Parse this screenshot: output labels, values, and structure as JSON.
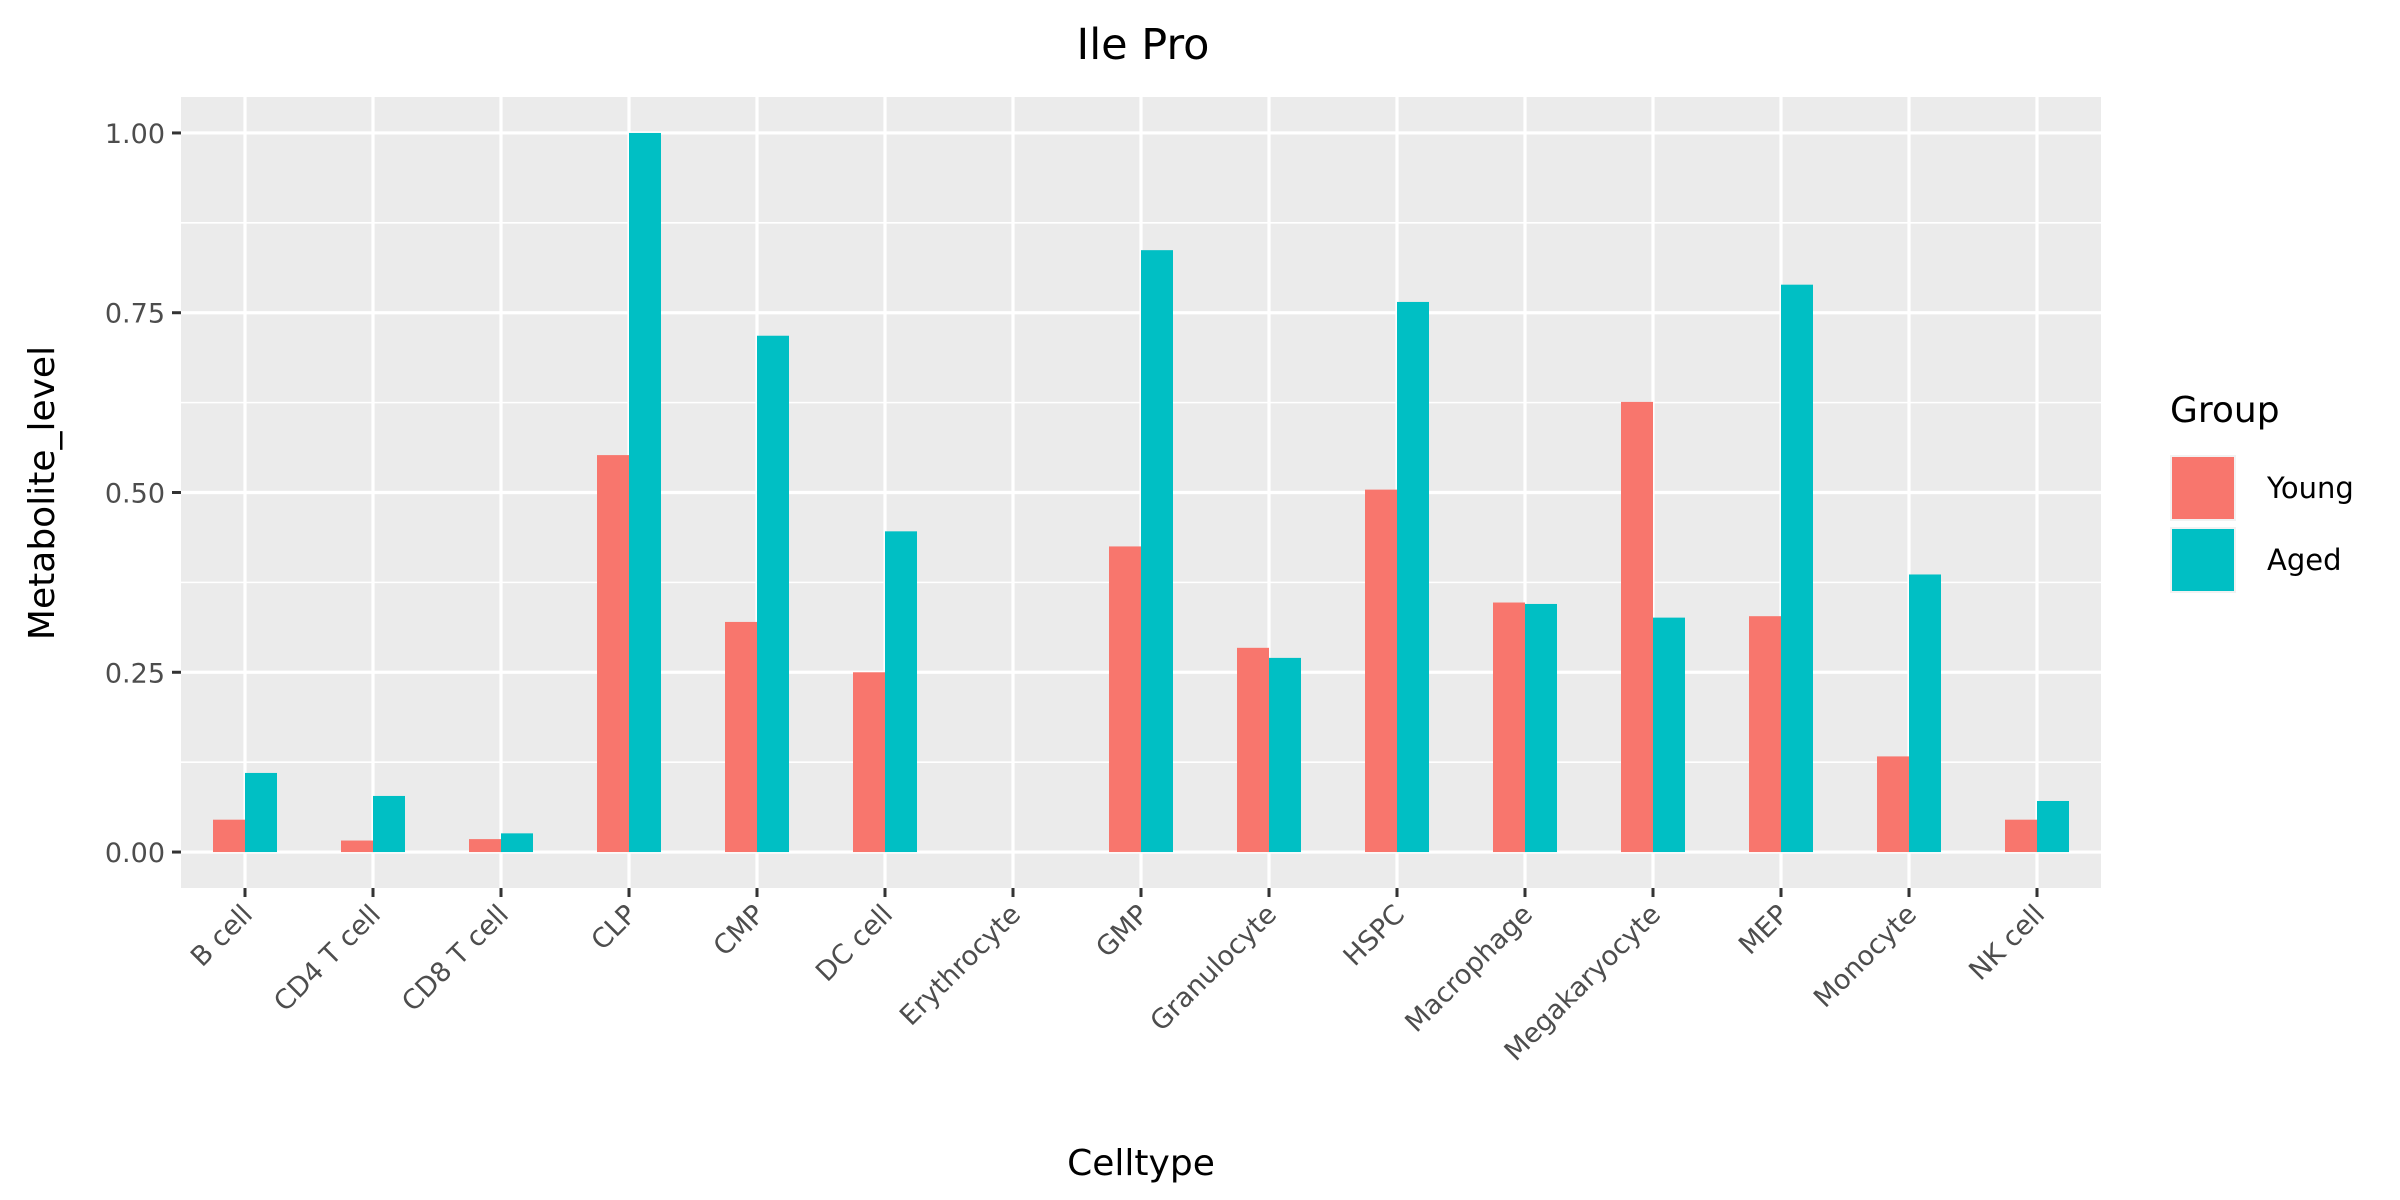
{
  "chart_data": {
    "type": "bar",
    "title": "Ile Pro",
    "xlabel": "Celltype",
    "ylabel": "Metabolite_level",
    "ylim": [
      -0.05,
      1.05
    ],
    "yticks": [
      0.0,
      0.25,
      0.5,
      0.75,
      1.0
    ],
    "ytick_labels": [
      "0.00",
      "0.25",
      "0.50",
      "0.75",
      "1.00"
    ],
    "categories": [
      "B cell",
      "CD4 T cell",
      "CD8 T cell",
      "CLP",
      "CMP",
      "DC cell",
      "Erythrocyte",
      "GMP",
      "Granulocyte",
      "HSPC",
      "Macrophage",
      "Megakaryocyte",
      "MEP",
      "Monocyte",
      "NK cell"
    ],
    "series": [
      {
        "name": "Young",
        "color": "#F8766D",
        "values": [
          0.045,
          0.016,
          0.018,
          0.552,
          0.32,
          0.25,
          0.0,
          0.425,
          0.284,
          0.504,
          0.347,
          0.626,
          0.328,
          0.133,
          0.045
        ]
      },
      {
        "name": "Aged",
        "color": "#00BFC4",
        "values": [
          0.11,
          0.078,
          0.026,
          1.0,
          0.718,
          0.446,
          0.0,
          0.837,
          0.27,
          0.765,
          0.345,
          0.326,
          0.789,
          0.386,
          0.071
        ]
      }
    ],
    "legend": {
      "title": "Group",
      "position": "right"
    },
    "grid": true,
    "panel_background": "#EBEBEB",
    "grid_color": "#FFFFFF"
  }
}
